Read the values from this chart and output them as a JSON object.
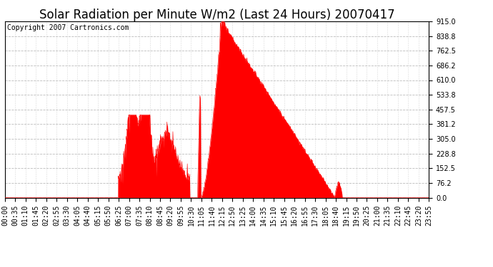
{
  "title": "Solar Radiation per Minute W/m2 (Last 24 Hours) 20070417",
  "copyright_text": "Copyright 2007 Cartronics.com",
  "y_min": 0.0,
  "y_max": 915.0,
  "y_ticks": [
    0.0,
    76.2,
    152.5,
    228.8,
    305.0,
    381.2,
    457.5,
    533.8,
    610.0,
    686.2,
    762.5,
    838.8,
    915.0
  ],
  "fill_color": "#FF0000",
  "line_color": "#FF0000",
  "background_color": "#FFFFFF",
  "grid_color_h": "#BBBBBB",
  "grid_color_v": "#BBBBBB",
  "dashed_line_color": "#FF0000",
  "title_fontsize": 12,
  "tick_fontsize": 7,
  "copyright_fontsize": 7,
  "x_tick_labels": [
    "00:00",
    "00:35",
    "01:10",
    "01:45",
    "02:20",
    "02:55",
    "03:30",
    "04:05",
    "04:40",
    "05:15",
    "05:50",
    "06:25",
    "07:00",
    "07:35",
    "08:10",
    "08:45",
    "09:20",
    "09:55",
    "10:30",
    "11:05",
    "11:40",
    "12:15",
    "12:50",
    "13:25",
    "14:00",
    "14:35",
    "15:10",
    "15:45",
    "16:20",
    "16:55",
    "17:30",
    "18:05",
    "18:40",
    "19:15",
    "19:50",
    "20:25",
    "21:00",
    "21:35",
    "22:10",
    "22:45",
    "23:20",
    "23:55"
  ],
  "num_points": 1440
}
